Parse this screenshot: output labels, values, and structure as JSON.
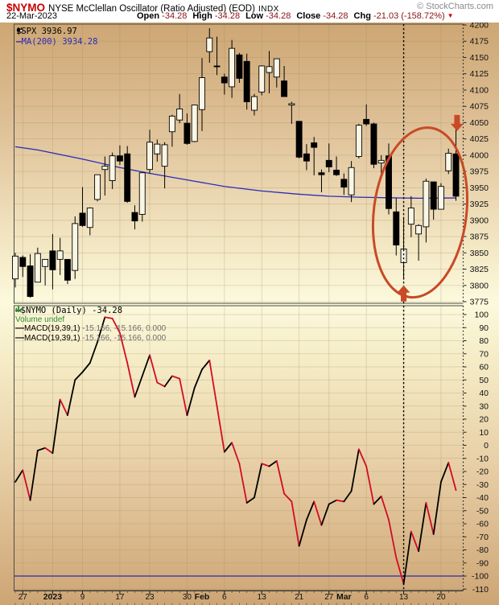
{
  "header": {
    "symbol": "$NYMO",
    "name": "NYSE McClellan Oscillator (Ratio Adjusted) (EOD)",
    "exchange": "INDX",
    "copyright": "© StockCharts.com",
    "date": "22-Mar-2023",
    "quote": [
      {
        "label": "Open",
        "value": "-34.28"
      },
      {
        "label": "High",
        "value": "-34.28"
      },
      {
        "label": "Low",
        "value": "-34.28"
      },
      {
        "label": "Close",
        "value": "-34.28"
      },
      {
        "label": "Chg",
        "value": "-21.03 (-158.72%)"
      }
    ],
    "chg_direction_icon": "▼"
  },
  "legend_top": [
    {
      "icon": "candlestick-icon",
      "text": "$SPX 3936.97",
      "color": "#000000",
      "mono": true
    },
    {
      "icon": "line-dash-icon",
      "text": "MA(200) 3934.28",
      "color": "#2a2ab8",
      "mono": true
    }
  ],
  "legend_bottom": [
    {
      "icon": "line-dash-icon",
      "text": "$NYMO (Daily) -34.28",
      "color": "#000000",
      "mono": true
    },
    {
      "icon": "volume-bars-icon",
      "text": "Volume undef",
      "color": "#2f8b2f",
      "mono": false
    },
    {
      "icon": "line-dash-icon",
      "text": "MACD(19,39,1)",
      "value2": "-15.166, -15.166, 0.000",
      "color": "#000000",
      "mono": false
    },
    {
      "icon": "line-dash-icon",
      "text": "MACD(19,39,1)",
      "value2": "-15.166, -15.166, 0.000",
      "color": "#000000",
      "mono": false
    }
  ],
  "colors": {
    "bg_stops": [
      "#cda673",
      "#dfc198",
      "#f3e7c3",
      "#fcf9dd",
      "#f5ecc6",
      "#e6cba2",
      "#cda574"
    ],
    "bg_stop_pos": [
      0,
      18,
      38,
      48,
      58,
      78,
      100
    ],
    "grid": "#9c8c64",
    "border": "#4d4d45",
    "axis_text": "#111111",
    "candle_up_fill": "#faf6e6",
    "candle_down_fill": "#000000",
    "candle_stroke": "#000000",
    "ma_line": "#2a2ab8",
    "osc_up": "#000000",
    "osc_down": "#d40a24",
    "osc_hline": "#2a2ab0",
    "annotation": "#c84a26",
    "quote_value": "#8b1212",
    "chg_arrow": "#cc0000"
  },
  "chart_data": [
    {
      "type": "candlestick",
      "panel": "price",
      "symbol": "$SPX",
      "last_close": 3936.97,
      "ylim": [
        3775,
        4200
      ],
      "ytick_step": 25,
      "yticks": [
        4200,
        4175,
        4150,
        4125,
        4100,
        4075,
        4050,
        4025,
        4000,
        3975,
        3950,
        3925,
        3900,
        3875,
        3850,
        3825,
        3800,
        3775
      ],
      "dates": [
        "Dec 23",
        "Dec 27",
        "Dec 28",
        "Dec 29",
        "Dec 30",
        "Jan 3",
        "Jan 4",
        "Jan 5",
        "Jan 6",
        "Jan 9",
        "Jan 10",
        "Jan 11",
        "Jan 12",
        "Jan 13",
        "Jan 17",
        "Jan 18",
        "Jan 19",
        "Jan 20",
        "Jan 23",
        "Jan 24",
        "Jan 25",
        "Jan 26",
        "Jan 27",
        "Jan 30",
        "Jan 31",
        "Feb 1",
        "Feb 2",
        "Feb 3",
        "Feb 6",
        "Feb 7",
        "Feb 8",
        "Feb 9",
        "Feb 10",
        "Feb 13",
        "Feb 14",
        "Feb 15",
        "Feb 16",
        "Feb 17",
        "Feb 21",
        "Feb 22",
        "Feb 23",
        "Feb 24",
        "Feb 27",
        "Feb 28",
        "Mar 1",
        "Mar 2",
        "Mar 3",
        "Mar 6",
        "Mar 7",
        "Mar 8",
        "Mar 9",
        "Mar 10",
        "Mar 13",
        "Mar 14",
        "Mar 15",
        "Mar 16",
        "Mar 17",
        "Mar 20",
        "Mar 21",
        "Mar 22"
      ],
      "ohlc": [
        [
          3810,
          3850,
          3797,
          3845
        ],
        [
          3843,
          3846,
          3813,
          3829
        ],
        [
          3830,
          3848,
          3781,
          3783
        ],
        [
          3805,
          3858,
          3805,
          3849
        ],
        [
          3829,
          3840,
          3800,
          3840
        ],
        [
          3853,
          3879,
          3794,
          3824
        ],
        [
          3840,
          3873,
          3816,
          3853
        ],
        [
          3840,
          3840,
          3802,
          3808
        ],
        [
          3823,
          3906,
          3810,
          3895
        ],
        [
          3911,
          3951,
          3890,
          3892
        ],
        [
          3889,
          3920,
          3877,
          3919
        ],
        [
          3932,
          3970,
          3929,
          3970
        ],
        [
          3978,
          3998,
          3938,
          3983
        ],
        [
          3961,
          4004,
          3948,
          3999
        ],
        [
          3999,
          4015,
          3985,
          3991
        ],
        [
          4002,
          4014,
          3927,
          3929
        ],
        [
          3912,
          3923,
          3886,
          3899
        ],
        [
          3909,
          3973,
          3898,
          3973
        ],
        [
          3978,
          4039,
          3972,
          4020
        ],
        [
          4002,
          4024,
          3990,
          4017
        ],
        [
          3983,
          4020,
          3949,
          4016
        ],
        [
          4036,
          4062,
          4013,
          4060
        ],
        [
          4054,
          4094,
          4049,
          4071
        ],
        [
          4049,
          4064,
          4016,
          4018
        ],
        [
          4021,
          4077,
          4020,
          4077
        ],
        [
          4070,
          4149,
          4037,
          4119
        ],
        [
          4159,
          4195,
          4142,
          4180
        ],
        [
          4137,
          4182,
          4123,
          4136
        ],
        [
          4120,
          4125,
          4093,
          4111
        ],
        [
          4105,
          4177,
          4088,
          4164
        ],
        [
          4154,
          4157,
          4111,
          4118
        ],
        [
          4144,
          4156,
          4070,
          4082
        ],
        [
          4069,
          4094,
          4061,
          4090
        ],
        [
          4097,
          4138,
          4092,
          4137
        ],
        [
          4127,
          4160,
          4095,
          4136
        ],
        [
          4120,
          4148,
          4104,
          4148
        ],
        [
          4114,
          4137,
          4090,
          4090
        ],
        [
          4077,
          4082,
          4048,
          4079
        ],
        [
          4052,
          4052,
          3995,
          3997
        ],
        [
          4002,
          4017,
          3977,
          3991
        ],
        [
          4019,
          4028,
          3969,
          4012
        ],
        [
          3973,
          3978,
          3943,
          3970
        ],
        [
          3992,
          4018,
          3974,
          3982
        ],
        [
          3977,
          3998,
          3968,
          3970
        ],
        [
          3963,
          3972,
          3939,
          3951
        ],
        [
          3939,
          3991,
          3928,
          3981
        ],
        [
          3998,
          4048,
          3995,
          4046
        ],
        [
          4055,
          4078,
          4045,
          4048
        ],
        [
          4048,
          4050,
          3980,
          3986
        ],
        [
          3988,
          4000,
          3970,
          3992
        ],
        [
          3999,
          4018,
          3909,
          3918
        ],
        [
          3913,
          3934,
          3846,
          3862
        ],
        [
          3835,
          3905,
          3809,
          3856
        ],
        [
          3894,
          3937,
          3874,
          3919
        ],
        [
          3879,
          3894,
          3838,
          3892
        ],
        [
          3890,
          3964,
          3866,
          3960
        ],
        [
          3959,
          3959,
          3901,
          3917
        ],
        [
          3917,
          3957,
          3917,
          3952
        ],
        [
          3976,
          4010,
          3971,
          4003
        ],
        [
          4002,
          4040,
          3930,
          3937
        ]
      ],
      "ma200": {
        "period": 200,
        "last": 3934.28,
        "points": [
          [
            0,
            4013
          ],
          [
            3,
            4008
          ],
          [
            9,
            3994
          ],
          [
            14,
            3981
          ],
          [
            18,
            3972
          ],
          [
            23,
            3962
          ],
          [
            28,
            3952
          ],
          [
            33,
            3945
          ],
          [
            38,
            3940
          ],
          [
            42,
            3937
          ],
          [
            46,
            3935.5
          ],
          [
            50,
            3934.6
          ],
          [
            54,
            3933.9
          ],
          [
            59,
            3934.3
          ]
        ]
      },
      "xlabels": [
        {
          "text": "27",
          "index": 1,
          "bold": false
        },
        {
          "text": "2023",
          "index": 5,
          "bold": true
        },
        {
          "text": "9",
          "index": 9,
          "bold": false
        },
        {
          "text": "17",
          "index": 14,
          "bold": false
        },
        {
          "text": "23",
          "index": 18,
          "bold": false
        },
        {
          "text": "30",
          "index": 23,
          "bold": false
        },
        {
          "text": "Feb",
          "index": 25,
          "bold": true
        },
        {
          "text": "6",
          "index": 28,
          "bold": false
        },
        {
          "text": "13",
          "index": 33,
          "bold": false
        },
        {
          "text": "21",
          "index": 38,
          "bold": false
        },
        {
          "text": "27",
          "index": 42,
          "bold": false
        },
        {
          "text": "Mar",
          "index": 44,
          "bold": true
        },
        {
          "text": "6",
          "index": 47,
          "bold": false
        },
        {
          "text": "13",
          "index": 52,
          "bold": false
        },
        {
          "text": "20",
          "index": 57,
          "bold": false
        }
      ],
      "grid_indices": [
        1,
        5,
        9,
        14,
        18,
        23,
        28,
        33,
        38,
        42,
        47,
        52,
        57
      ]
    },
    {
      "type": "line",
      "panel": "oscillator",
      "symbol": "$NYMO",
      "last_close": -34.28,
      "prev_close": -13.25,
      "ylim": [
        -110,
        100
      ],
      "ytick_step": 10,
      "yticks": [
        100,
        90,
        80,
        70,
        60,
        50,
        40,
        30,
        20,
        10,
        0,
        -10,
        -20,
        -30,
        -40,
        -50,
        -60,
        -70,
        -80,
        -90,
        -100,
        -110
      ],
      "values": [
        -28,
        -19,
        -42,
        -4,
        -2,
        -6,
        35,
        23,
        50,
        56,
        63,
        79,
        98,
        97,
        86,
        63,
        37,
        53,
        69,
        48,
        45,
        53,
        51,
        23,
        44,
        58,
        65,
        30,
        -5,
        2,
        -14,
        -44,
        -40,
        -14,
        -16,
        -12,
        -37,
        -43,
        -77,
        -57,
        -43,
        -61,
        -45,
        -42,
        -43,
        -35,
        -3,
        -16,
        -45,
        -39,
        -57,
        -86,
        -106,
        -66,
        -81,
        -44,
        -68,
        -28,
        -13.25,
        -34.28
      ],
      "hline": {
        "value": -100
      },
      "legend_note": "black segments rising, red segments falling"
    }
  ],
  "annotations": {
    "vline": {
      "date_index": 52,
      "style": "dotted"
    },
    "ellipse": {
      "center_date_index": 54.2,
      "center_price": 3912,
      "radius_days": 6.2,
      "radius_price": 131,
      "rotate_deg": 7
    },
    "arrows": [
      {
        "date_index": 52,
        "price": 3800,
        "direction": "up"
      },
      {
        "date_index": 59.15,
        "price": 4037,
        "direction": "down"
      }
    ]
  }
}
